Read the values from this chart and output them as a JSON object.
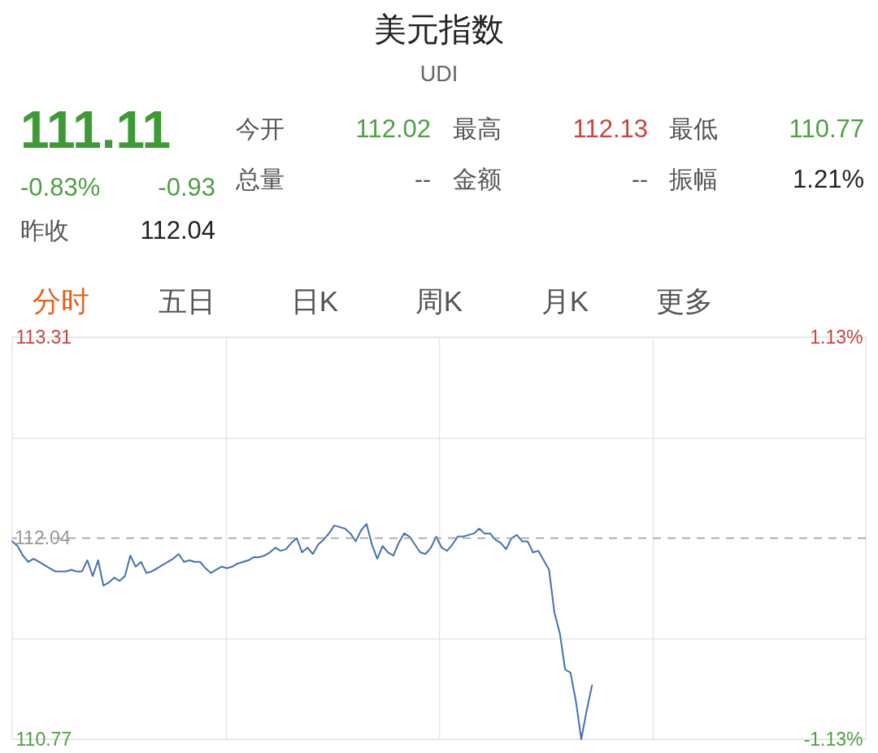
{
  "chart_data": {
    "type": "line",
    "title": "美元指数",
    "subtitle": "UDI",
    "annotations": [
      "111.11",
      "今开",
      "112.02",
      "最高",
      "112.13",
      "最低",
      "110.77",
      "-0.83%",
      "-0.93",
      "总量",
      "--",
      "金额",
      "--",
      "振幅",
      "1.21%",
      "昨收",
      "112.04",
      "分时",
      "五日",
      "日K",
      "周K",
      "月K",
      "更多"
    ],
    "categories": [
      null,
      null,
      null,
      null,
      null,
      null,
      null,
      null,
      null,
      null,
      null,
      null,
      null,
      null,
      null,
      null,
      null,
      null,
      null,
      null,
      null,
      null,
      null,
      null,
      null,
      null,
      null,
      null,
      null,
      null,
      null,
      null,
      null,
      null,
      null,
      null,
      null,
      null,
      null,
      null,
      null,
      null,
      null,
      null,
      null,
      null,
      null,
      null,
      null,
      null,
      null,
      null,
      null,
      null,
      null,
      null,
      null,
      null,
      null,
      null,
      null,
      null,
      null,
      null,
      null,
      null,
      null,
      null,
      null,
      null,
      null,
      null,
      null,
      null,
      null,
      null,
      null,
      null,
      null,
      null,
      null,
      null,
      null,
      null,
      null,
      null,
      null,
      null,
      null,
      null,
      null,
      null,
      null,
      null,
      null,
      null,
      null,
      null,
      null,
      null,
      null,
      null,
      null,
      null,
      null,
      null,
      null,
      null,
      null,
      null,
      null,
      null,
      null,
      null,
      null,
      null,
      null,
      null,
      null,
      null,
      null,
      null,
      null,
      null,
      null,
      null,
      null,
      null,
      null,
      null,
      null,
      null,
      null,
      null,
      null,
      null,
      null,
      null,
      null,
      null,
      null,
      null,
      null,
      null,
      null,
      null,
      null,
      null,
      null,
      null,
      null,
      null,
      null,
      null,
      null,
      null,
      null,
      null,
      null,
      null
    ],
    "series": [
      {
        "color": "#4470b0",
        "values": [
          112.02,
          111.99,
          111.93,
          111.89,
          111.91,
          111.89,
          111.87,
          111.85,
          111.83,
          111.83,
          111.83,
          111.84,
          111.83,
          111.83,
          111.9,
          111.8,
          111.9,
          111.74,
          111.76,
          111.79,
          111.77,
          111.8,
          111.93,
          111.86,
          111.89,
          111.82,
          111.83,
          111.85,
          111.87,
          111.89,
          111.91,
          111.94,
          111.89,
          111.9,
          111.89,
          111.89,
          111.85,
          111.82,
          111.84,
          111.86,
          111.85,
          111.86,
          111.88,
          111.89,
          111.9,
          111.92,
          111.92,
          111.93,
          111.95,
          111.98,
          111.96,
          111.97,
          112.01,
          112.04,
          111.95,
          111.98,
          111.94,
          112.0,
          112.03,
          112.07,
          112.12,
          112.11,
          112.1,
          112.07,
          112.02,
          112.09,
          112.13,
          112.0,
          111.91,
          111.99,
          111.95,
          111.93,
          112.01,
          112.07,
          112.05,
          112.0,
          111.95,
          111.94,
          111.98,
          112.05,
          111.98,
          111.96,
          112.0,
          112.05,
          112.05,
          112.06,
          112.07,
          112.1,
          112.07,
          112.07,
          112.03,
          112.01,
          111.97,
          112.04,
          112.06,
          112.02,
          112.02,
          111.95,
          111.96,
          111.9,
          111.84,
          111.57,
          111.44,
          111.21,
          111.19,
          111.01,
          110.77,
          110.95,
          111.11,
          null,
          null,
          null,
          null,
          null,
          null,
          null,
          null,
          null,
          null,
          null,
          null,
          null,
          null,
          null,
          null,
          null,
          null,
          null,
          null,
          null,
          null,
          null,
          null,
          null,
          null,
          null,
          null,
          null,
          null,
          null,
          null,
          null,
          null,
          null,
          null,
          null,
          null,
          null,
          null,
          null,
          null,
          null,
          null,
          null,
          null,
          null,
          null,
          null,
          null,
          null
        ]
      }
    ],
    "ylim": [
      110.77,
      113.31
    ],
    "yticks": [
      113.31,
      {
        "value": 112.675,
        "label": null
      },
      {
        "value": 111.405,
        "label": null
      },
      110.77
    ],
    "y2lim": [
      -1.13,
      1.13
    ],
    "y2ticks": [
      {
        "value": 1.13,
        "label": "1.13%"
      },
      {
        "value": -1.13,
        "label": "-1.13%"
      }
    ],
    "ref_lines": [
      {
        "axis": "y",
        "value": 112.04,
        "label": "112.04",
        "line_style": "dashed",
        "color": "#999999"
      }
    ],
    "grid": true
  }
}
